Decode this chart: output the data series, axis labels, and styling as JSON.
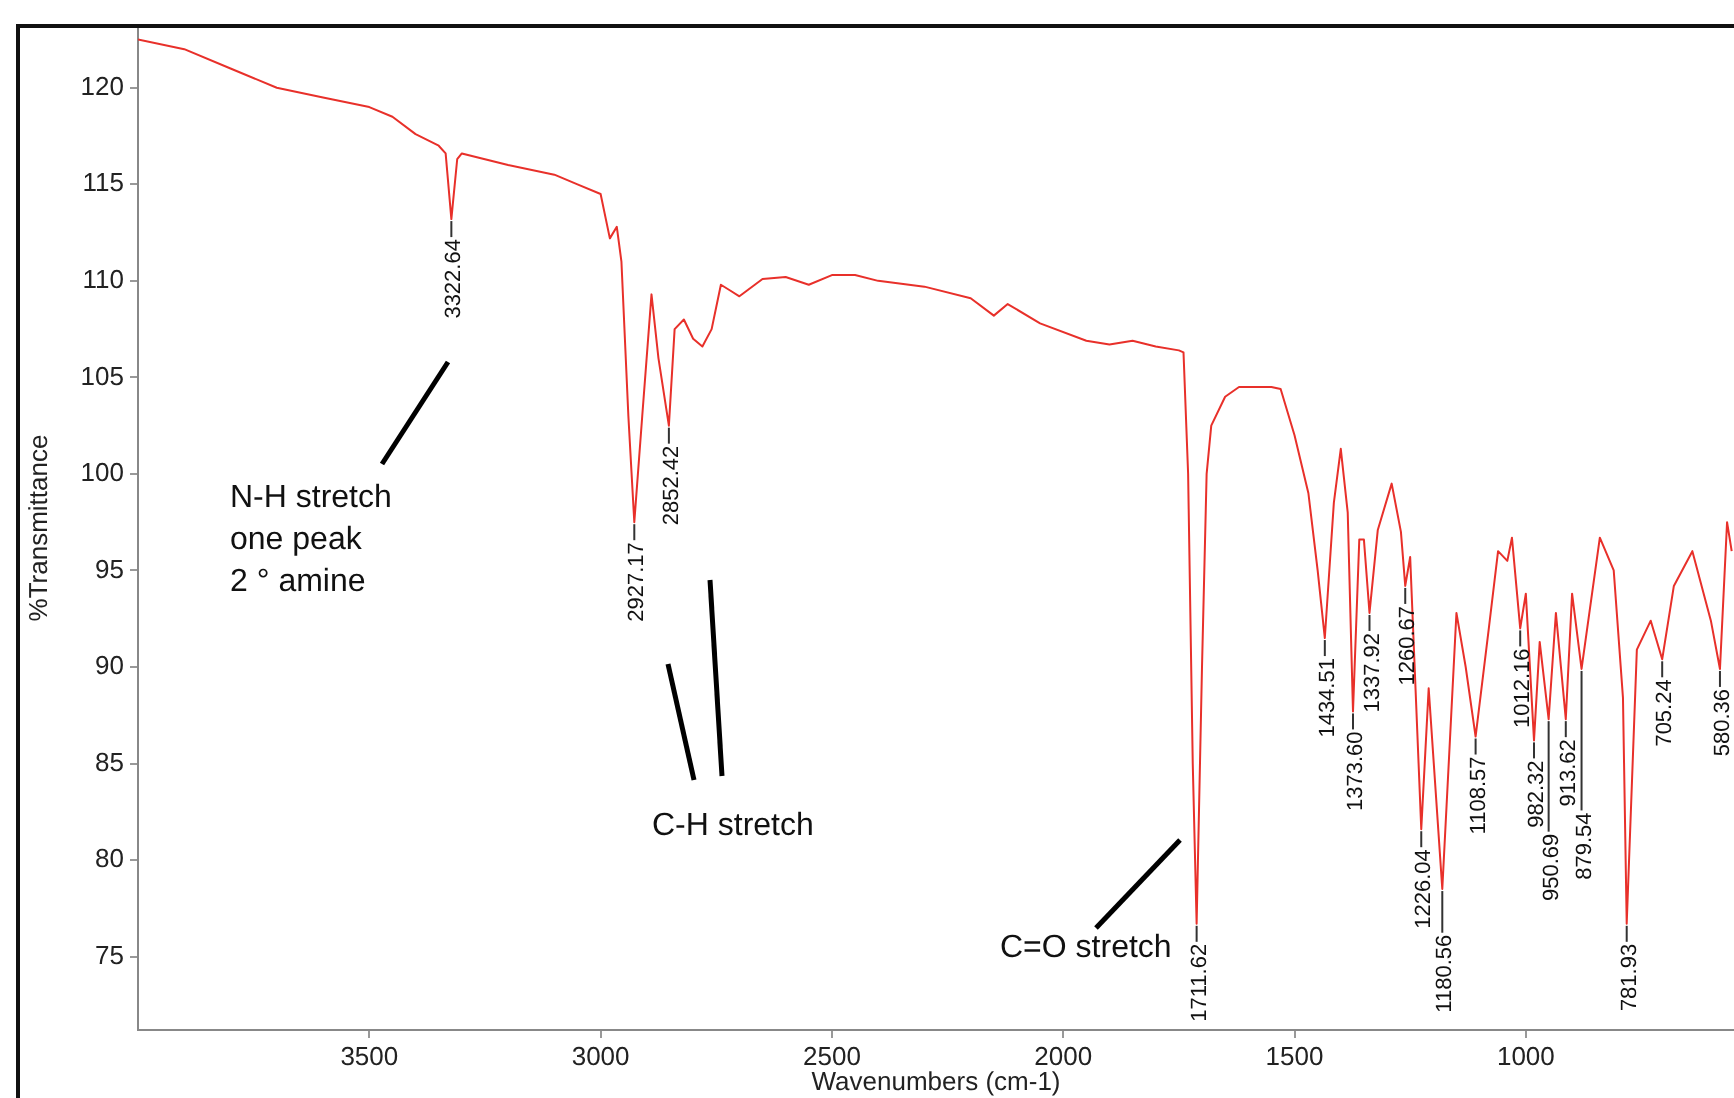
{
  "chart_data": {
    "type": "line",
    "xlabel": "Wavenumbers (cm-1)",
    "ylabel": "%Transmittance",
    "x": [
      4000,
      3900,
      3800,
      3700,
      3600,
      3500,
      3450,
      3400,
      3350,
      3335,
      3322.64,
      3310,
      3300,
      3200,
      3100,
      3050,
      3000,
      2980,
      2965,
      2955,
      2940,
      2927.17,
      2910,
      2890,
      2875,
      2852.42,
      2840,
      2820,
      2800,
      2780,
      2760,
      2740,
      2720,
      2700,
      2650,
      2600,
      2550,
      2500,
      2450,
      2400,
      2300,
      2200,
      2150,
      2120,
      2050,
      1950,
      1900,
      1850,
      1800,
      1750,
      1740,
      1730,
      1720,
      1711.62,
      1700,
      1690,
      1680,
      1650,
      1620,
      1550,
      1530,
      1500,
      1470,
      1450,
      1434.51,
      1415,
      1400,
      1385,
      1373.6,
      1360,
      1350,
      1337.92,
      1320,
      1290,
      1270,
      1260.67,
      1250,
      1226.04,
      1210,
      1180.56,
      1150,
      1130,
      1108.57,
      1080,
      1060,
      1040,
      1030,
      1012.16,
      1000,
      982.32,
      970,
      950.69,
      935,
      913.62,
      900,
      879.54,
      840,
      810,
      790,
      781.93,
      760,
      730,
      705.24,
      680,
      640,
      600,
      580.36,
      565,
      555
    ],
    "series": [
      {
        "color": "#e8302a",
        "values": [
          122.5,
          122,
          121,
          120,
          119.5,
          119,
          118.5,
          117.6,
          117,
          116.6,
          113.2,
          116.3,
          116.6,
          116,
          115.5,
          115,
          114.5,
          112.2,
          112.8,
          111,
          103,
          97.5,
          103,
          109.3,
          106,
          102.5,
          107.5,
          108,
          107,
          106.6,
          107.5,
          109.8,
          109.5,
          109.2,
          110.1,
          110.2,
          109.8,
          110.3,
          110.3,
          110,
          109.7,
          109.1,
          108.2,
          108.8,
          107.8,
          106.9,
          106.7,
          106.9,
          106.6,
          106.4,
          106.3,
          100,
          85,
          76.7,
          90,
          100,
          102.5,
          104,
          104.5,
          104.5,
          104.4,
          102,
          99,
          95,
          91.5,
          98.5,
          101.3,
          98,
          87.7,
          96.6,
          96.6,
          92.8,
          97.1,
          99.5,
          97,
          94.2,
          95.7,
          81.6,
          88.9,
          78.5,
          92.8,
          90,
          86.4,
          92,
          96,
          95.5,
          96.7,
          92,
          93.8,
          86.2,
          91.3,
          87.3,
          92.8,
          87.3,
          93.8,
          89.9,
          96.7,
          95,
          88.4,
          76.7,
          90.9,
          92.4,
          90.4,
          94.2,
          96,
          92.4,
          89.9,
          97.5,
          96
        ]
      }
    ],
    "xlim": [
      4000,
      550
    ],
    "xticks": [
      3500,
      3000,
      2500,
      2000,
      1500,
      1000
    ],
    "ylim": [
      71.2,
      123.2
    ],
    "yticks": [
      75,
      80,
      85,
      90,
      95,
      100,
      105,
      110,
      115,
      120
    ],
    "grid": false,
    "legend": false,
    "marker": "none",
    "line_style": "solid",
    "annotations": [
      {
        "text": "3322.64",
        "x": 3322.64,
        "y": 113.2
      },
      {
        "text": "2927.17",
        "x": 2927.17,
        "y": 97.5
      },
      {
        "text": "2852.42",
        "x": 2852.42,
        "y": 102.5
      },
      {
        "text": "1711.62",
        "x": 1711.62,
        "y": 76.7
      },
      {
        "text": "1434.51",
        "x": 1434.51,
        "y": 91.5
      },
      {
        "text": "1373.60",
        "x": 1373.6,
        "y": 87.7
      },
      {
        "text": "1337.92",
        "x": 1337.92,
        "y": 92.8
      },
      {
        "text": "1260.67",
        "x": 1260.67,
        "y": 94.2
      },
      {
        "text": "1226.04",
        "x": 1226.04,
        "y": 81.6
      },
      {
        "text": "1180.56",
        "x": 1180.56,
        "y": 78.5
      },
      {
        "text": "1108.57",
        "x": 1108.57,
        "y": 86.4
      },
      {
        "text": "1012.16",
        "x": 1012.16,
        "y": 92
      },
      {
        "text": "982.32",
        "x": 982.32,
        "y": 86.2
      },
      {
        "text": "950.69",
        "x": 950.69,
        "y": 87.3
      },
      {
        "text": "913.62",
        "x": 913.62,
        "y": 87.3
      },
      {
        "text": "879.54",
        "x": 879.54,
        "y": 89.9
      },
      {
        "text": "781.93",
        "x": 781.93,
        "y": 76.7
      },
      {
        "text": "705.24",
        "x": 705.24,
        "y": 90.4
      },
      {
        "text": "580.36",
        "x": 580.36,
        "y": 89.9
      },
      "N-H stretch\none peak\n2 ° amine",
      "C-H stretch",
      "C=O stretch"
    ]
  }
}
